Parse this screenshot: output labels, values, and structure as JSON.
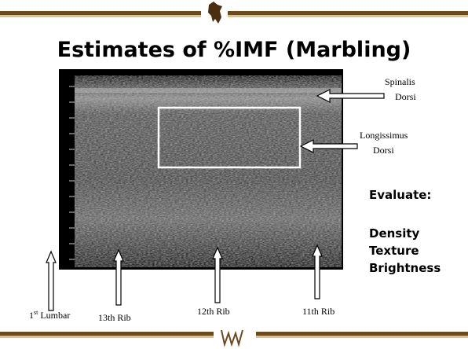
{
  "slide": {
    "title": "Estimates of %IMF (Marbling)",
    "muscles": {
      "spinalis": [
        "Spinalis",
        "Dorsi"
      ],
      "longissimus": [
        "Longissimus",
        "Dorsi"
      ]
    },
    "evaluate": {
      "heading": "Evaluate:",
      "items": [
        "Density",
        "Texture",
        "Brightness"
      ]
    },
    "landmarks": {
      "lumbar": {
        "ordinal": "1",
        "suffix": "st",
        "name": "Lumbar"
      },
      "ribs": [
        "13th Rib",
        "12th Rib",
        "11th Rib"
      ]
    }
  }
}
